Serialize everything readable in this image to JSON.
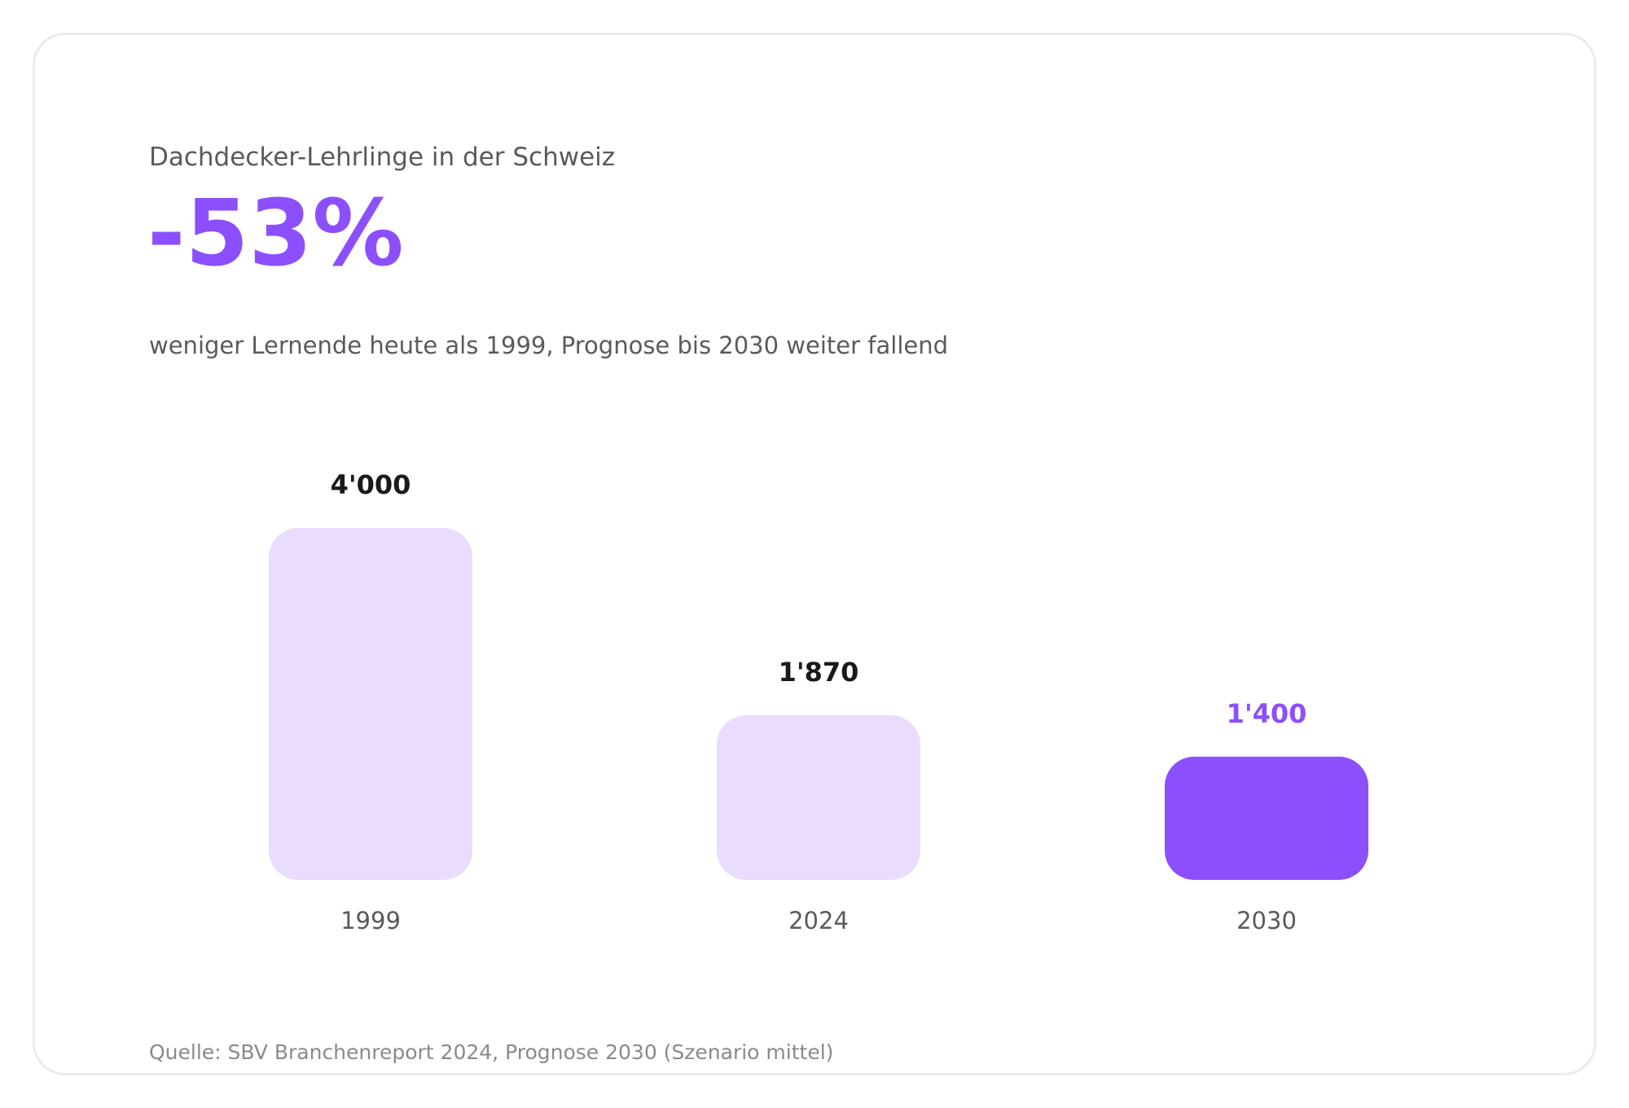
{
  "card": {
    "kicker": "Dachdecker-Lehrlinge in der Schweiz",
    "headline": "-53%",
    "subline": "weniger Lernende heute als 1999, Prognose bis 2030 weiter fallend",
    "source": "Quelle: SBV Branchenreport 2024, Prognose 2030 (Szenario mittel)"
  },
  "colors": {
    "accent": "#8c4ffd",
    "bar_light": "#eadcff",
    "label_dark": "#1a1a1a",
    "muted": "#5a5a5a",
    "border": "#ebebeb"
  },
  "chart_data": {
    "type": "bar",
    "categories": [
      "1999",
      "2024",
      "2030"
    ],
    "values": [
      4000,
      1870,
      1400
    ],
    "value_labels": [
      "4'000",
      "1'870",
      "1'400"
    ],
    "highlight_index": 2,
    "ylim": [
      0,
      4000
    ],
    "grid": false,
    "title": "Dachdecker-Lehrlinge in der Schweiz",
    "xlabel": "",
    "ylabel": ""
  }
}
